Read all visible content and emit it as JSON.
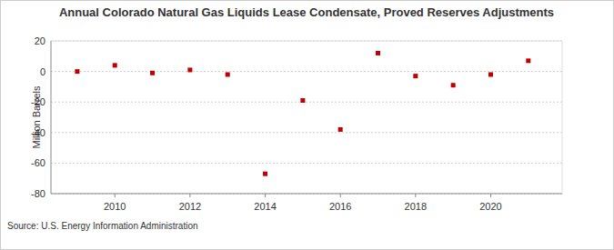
{
  "chart_data": {
    "type": "scatter",
    "title": "Annual Colorado Natural Gas Liquids Lease Condensate, Proved Reserves Adjustments",
    "y_label": "Million Barrels",
    "source": "Source: U.S. Energy Information Administration",
    "x": [
      2009,
      2010,
      2011,
      2012,
      2013,
      2014,
      2015,
      2016,
      2017,
      2018,
      2019,
      2020,
      2021
    ],
    "values": [
      0,
      4,
      -1,
      1,
      -2,
      -67,
      -19,
      -38,
      12,
      -3,
      -9,
      -2,
      7
    ],
    "color": "#c00000",
    "marker": "square",
    "xlim": [
      2008.3,
      2021.9
    ],
    "xticks": [
      2010,
      2012,
      2014,
      2016,
      2018,
      2020
    ],
    "ylim": [
      -80,
      20
    ],
    "yticks": [
      -80,
      -60,
      -40,
      -20,
      0,
      20
    ],
    "grid": true
  }
}
